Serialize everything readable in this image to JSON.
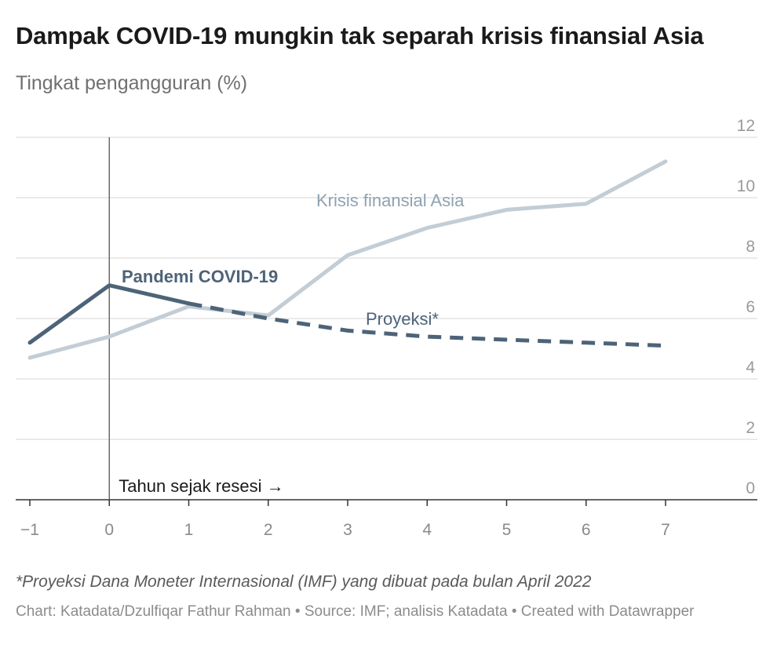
{
  "title": "Dampak COVID-19 mungkin tak separah krisis finansial Asia",
  "subtitle": "Tingkat pengangguran (%)",
  "note": "*Proyeksi Dana Moneter Internasional (IMF) yang dibuat pada bulan April 2022",
  "credits": "Chart: Katadata/Dzulfiqar Fathur Rahman • Source: IMF; analisis Katadata • Created with Datawrapper",
  "colors": {
    "asia": "#c3cdd5",
    "asia_label": "#8fa2b1",
    "covid": "#4d6378",
    "grid": "#e3e3e3",
    "axis": "#333333"
  },
  "chart_data": {
    "type": "line",
    "xlabel": "Tahun sejak resesi →",
    "ylabel": "Tingkat pengangguran (%)",
    "xlim": [
      -1,
      7
    ],
    "ylim": [
      0,
      12
    ],
    "x_ticks": [
      "−1",
      "0",
      "1",
      "2",
      "3",
      "4",
      "5",
      "6",
      "7"
    ],
    "y_ticks": [
      "0",
      "2",
      "4",
      "6",
      "8",
      "10",
      "12"
    ],
    "grid": true,
    "reference_line_x": 0,
    "series": [
      {
        "name": "Krisis finansial Asia",
        "x": [
          -1,
          0,
          1,
          2,
          3,
          4,
          5,
          6,
          7
        ],
        "values": [
          4.7,
          5.4,
          6.4,
          6.1,
          8.1,
          9.0,
          9.6,
          9.8,
          11.2
        ]
      },
      {
        "name": "Pandemi COVID-19",
        "x": [
          -1,
          0,
          1
        ],
        "values": [
          5.2,
          7.1,
          6.5
        ]
      },
      {
        "name": "Proyeksi*",
        "x": [
          1,
          2,
          3,
          4,
          5,
          6,
          7
        ],
        "values": [
          6.5,
          6.0,
          5.6,
          5.4,
          5.3,
          5.2,
          5.1
        ],
        "style": "dashed"
      }
    ]
  }
}
